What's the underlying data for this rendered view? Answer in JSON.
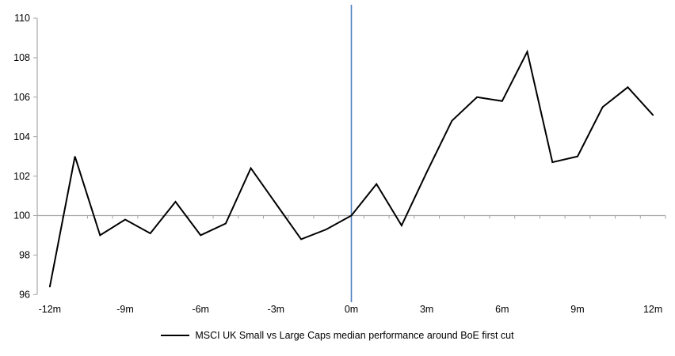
{
  "chart_data": {
    "type": "line",
    "x": [
      -12,
      -11,
      -10,
      -9,
      -8,
      -7,
      -6,
      -5,
      -4,
      -3,
      -2,
      -1,
      0,
      1,
      2,
      3,
      4,
      5,
      6,
      7,
      8,
      9,
      10,
      11,
      12
    ],
    "series": [
      {
        "name": "MSCI UK Small vs Large Caps median performance around BoE first cut",
        "values": [
          96.4,
          103.0,
          99.0,
          99.8,
          99.1,
          100.7,
          99.0,
          99.6,
          102.4,
          100.6,
          98.8,
          99.3,
          100.0,
          101.6,
          99.5,
          102.2,
          104.8,
          106.0,
          105.8,
          108.3,
          102.7,
          103.0,
          105.5,
          106.5,
          105.1
        ]
      }
    ],
    "title": "",
    "xlabel": "",
    "ylabel": "",
    "ylim": [
      96,
      110
    ],
    "yticks": [
      96,
      98,
      100,
      102,
      104,
      106,
      108,
      110
    ],
    "xtick_labels": [
      "-12m",
      "-9m",
      "-6m",
      "-3m",
      "0m",
      "3m",
      "6m",
      "9m",
      "12m"
    ],
    "xtick_label_positions": [
      -12,
      -9,
      -6,
      -3,
      0,
      3,
      6,
      9,
      12
    ],
    "x_range_categories": [
      -12.5,
      12.5
    ],
    "minor_xtick_step": 1,
    "baseline_value": 100,
    "event_line_x": 0,
    "grid": "baseline-only",
    "legend_position": "bottom-center",
    "colors": {
      "series_line": "#000000",
      "axis": "#A6A6A6",
      "baseline": "#A6A6A6",
      "event_line": "#4F81BD",
      "text": "#000000",
      "background": "#FFFFFF"
    },
    "legend": {
      "label": "MSCI UK Small vs Large Caps median performance around BoE first cut"
    }
  }
}
